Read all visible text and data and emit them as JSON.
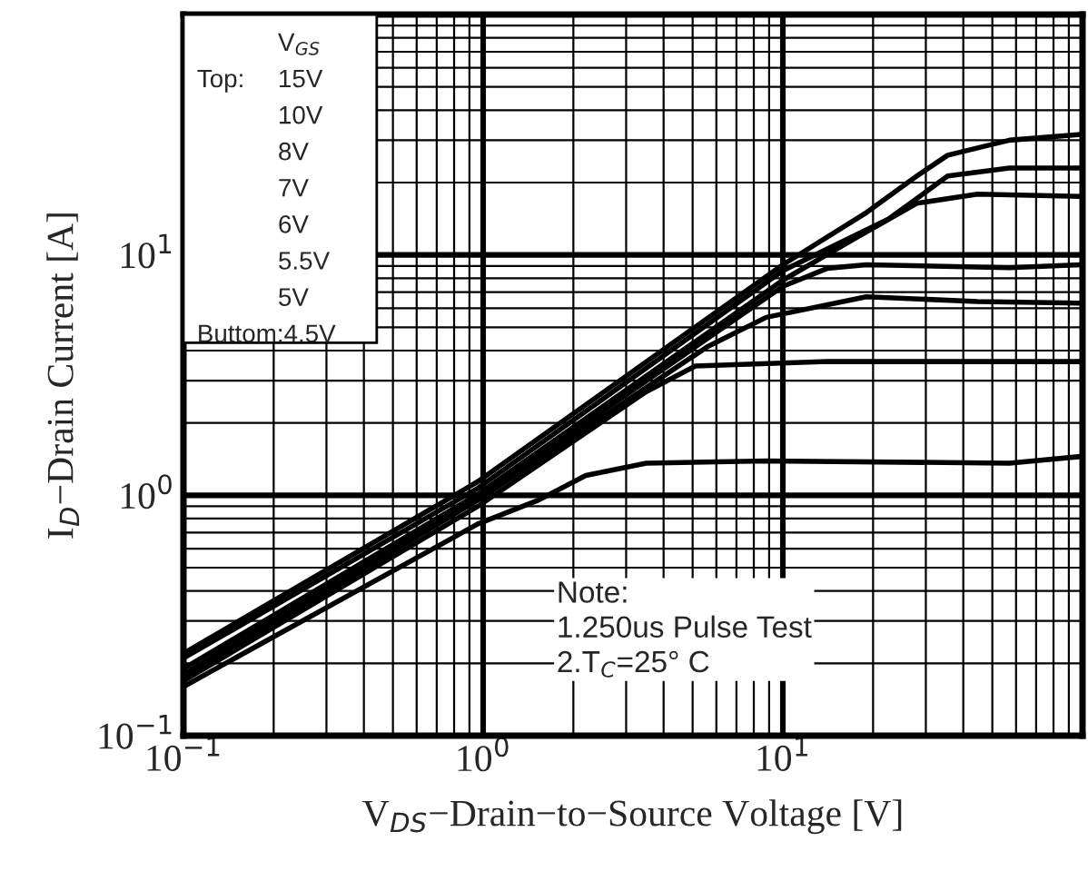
{
  "chart_data": {
    "type": "line",
    "xlabel": "V$_{DS}$−Drain−to−Source Voltage [V]",
    "ylabel": "I$_{D}$−Drain Current [A]",
    "log": "xy",
    "xlim": [
      0.1,
      100
    ],
    "ylim": [
      0.1,
      100
    ],
    "xticks": [
      {
        "value": 0.1,
        "label": "10$^{−1}$"
      },
      {
        "value": 1,
        "label": "10$^{0}$"
      },
      {
        "value": 10,
        "label": "10$^{1}$"
      },
      {
        "value": 100,
        "label": null
      }
    ],
    "yticks": [
      {
        "value": 0.1,
        "label": "10$^{−1}$"
      },
      {
        "value": 1,
        "label": "10$^{0}$"
      },
      {
        "value": 10,
        "label": "10$^{1}$"
      },
      {
        "value": 100,
        "label": null
      }
    ],
    "grid": true,
    "series": [
      {
        "color": "#000000",
        "x": [
          0.1,
          0.96,
          10,
          19,
          28,
          35.5,
          57,
          98.6
        ],
        "values": [
          0.22,
          1.14,
          9.1,
          15,
          21.3,
          26,
          30,
          31.7
        ]
      },
      {
        "color": "#000000",
        "x": [
          0.1,
          0.96,
          10,
          22.5,
          35.5,
          57,
          98.6
        ],
        "values": [
          0.21,
          1.07,
          8.6,
          14.1,
          21.3,
          23,
          23
        ]
      },
      {
        "color": "#000000",
        "x": [
          0.1,
          0.96,
          10,
          17.8,
          28,
          44.6,
          98.6
        ],
        "values": [
          0.19,
          1.01,
          7.85,
          11.9,
          16.4,
          17.9,
          17.5
        ]
      },
      {
        "color": "#000000",
        "x": [
          0.1,
          0.96,
          10,
          14.1,
          19,
          57,
          98.6
        ],
        "values": [
          0.18,
          0.98,
          7.4,
          8.8,
          9.1,
          8.85,
          9.1
        ]
      },
      {
        "color": "#000000",
        "x": [
          0.1,
          0.96,
          5.6,
          8.8,
          19,
          44.6,
          98.6
        ],
        "values": [
          0.175,
          0.955,
          4.15,
          5.5,
          6.7,
          6.4,
          6.3
        ]
      },
      {
        "color": "#000000",
        "x": [
          0.1,
          0.96,
          3.5,
          5.1,
          14.1,
          98.6
        ],
        "values": [
          0.169,
          0.9,
          2.7,
          3.45,
          3.6,
          3.6
        ]
      },
      {
        "color": "#000000",
        "x": [
          0.1,
          0.96,
          1.53,
          2.2,
          3.5,
          8.8,
          57,
          98.6
        ],
        "values": [
          0.16,
          0.76,
          0.955,
          1.21,
          1.36,
          1.39,
          1.36,
          1.45
        ]
      }
    ],
    "line_style": "solid",
    "marker": "none",
    "annotations": [
      "V$_{GS}$",
      "Top:",
      "15V",
      "10V",
      "8V",
      "7V",
      "6V",
      "5.5V",
      "5V",
      "Buttom:4.5V",
      "Note:\n1.250us Pulse Test\n2.T$_{C}$=25° C"
    ]
  }
}
